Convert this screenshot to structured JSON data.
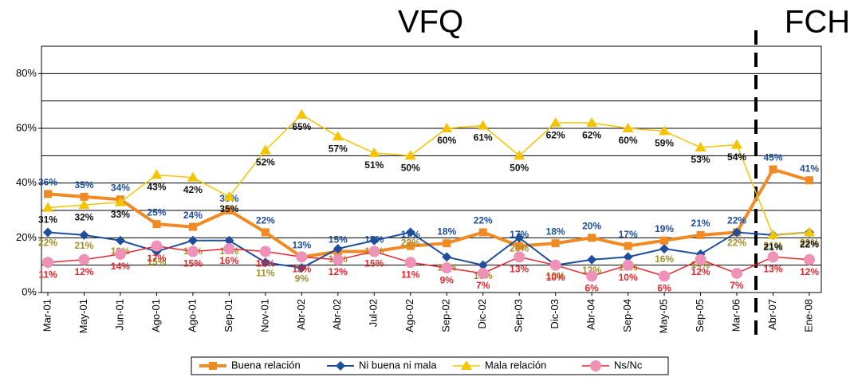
{
  "chart_data": {
    "type": "line",
    "annotations": [
      "VFQ",
      "FCH"
    ],
    "categories": [
      "Mar-01",
      "May-01",
      "Jun-01",
      "Ago-01",
      "Ago-01",
      "Sep-01",
      "Nov-01",
      "Abr-02",
      "Abr-02",
      "Jul-02",
      "Ago-02",
      "Sep-02",
      "Dic-02",
      "Sep-03",
      "Dic-03",
      "Abr-04",
      "Sep-04",
      "May-05",
      "Sep-05",
      "Mar-06",
      "Abr-07",
      "Ene-08"
    ],
    "ylim": [
      0,
      90
    ],
    "yticks": [
      {
        "value": 0,
        "label": "0%"
      },
      {
        "value": 20,
        "label": "20%"
      },
      {
        "value": 40,
        "label": "40%"
      },
      {
        "value": 60,
        "label": "60%"
      },
      {
        "value": 80,
        "label": "80%"
      }
    ],
    "grid_lines": [
      10,
      20,
      30,
      40,
      50,
      60,
      70,
      80,
      90
    ],
    "legend": "bottom",
    "series": [
      {
        "name": "Buena relación",
        "color": "#f08a24",
        "marker": "square",
        "width": 4,
        "label_color": "#1f4e9c",
        "label_offset": -14,
        "values": [
          36,
          35,
          34,
          25,
          24,
          30,
          22,
          13,
          15,
          15,
          17,
          18,
          22,
          17,
          18,
          20,
          17,
          19,
          21,
          22,
          45,
          41
        ],
        "value_labels": [
          "36%",
          "35%",
          "34%",
          "25%",
          "24%",
          "30%",
          "22%",
          "13%",
          "15%",
          "15%",
          "17%",
          "18%",
          "22%",
          "17%",
          "18%",
          "20%",
          "17%",
          "19%",
          "21%",
          "22%",
          "45%",
          "41%"
        ]
      },
      {
        "name": "Ni buena ni mala",
        "color": "#1f4e9c",
        "marker": "diamond",
        "width": 2,
        "label_color": "#a08f2a",
        "label_offset": 14,
        "values": [
          22,
          21,
          19,
          15,
          19,
          19,
          11,
          9,
          16,
          19,
          22,
          13,
          10,
          20,
          10,
          12,
          13,
          16,
          14,
          22,
          21,
          22
        ],
        "value_labels": [
          "22%",
          "21%",
          "19%",
          "15%",
          "19%",
          "19%",
          "11%",
          "9%",
          "16%",
          "19%",
          "22%",
          "13%",
          "10%",
          "20%",
          "10%",
          "12%",
          "13%",
          "16%",
          "14%",
          "22%",
          "21%",
          "22%"
        ]
      },
      {
        "name": "Mala relación",
        "color": "#f5c400",
        "marker": "triangle",
        "width": 1.5,
        "label_color": "#111111",
        "label_offset": 16,
        "values": [
          31,
          32,
          33,
          43,
          42,
          35,
          52,
          65,
          57,
          51,
          50,
          60,
          61,
          50,
          62,
          62,
          60,
          59,
          53,
          54,
          21,
          22
        ],
        "value_labels": [
          "31%",
          "32%",
          "33%",
          "43%",
          "42%",
          "35%",
          "52%",
          "65%",
          "57%",
          "51%",
          "50%",
          "60%",
          "61%",
          "50%",
          "62%",
          "62%",
          "60%",
          "59%",
          "53%",
          "54%",
          "21%",
          "22%"
        ]
      },
      {
        "name": "Ns/Nc",
        "color": "#e8262e",
        "marker": "circle",
        "marker_color": "#ee92b8",
        "width": 1.5,
        "label_color": "#e8262e",
        "label_offset": 16,
        "values": [
          11,
          12,
          14,
          17,
          15,
          16,
          15,
          13,
          12,
          15,
          11,
          9,
          7,
          13,
          10,
          6,
          10,
          6,
          12,
          7,
          13,
          12
        ],
        "value_labels": [
          "11%",
          "12%",
          "14%",
          "17%",
          "15%",
          "16%",
          "15%",
          "13%",
          "12%",
          "15%",
          "11%",
          "9%",
          "7%",
          "13%",
          "10%",
          "6%",
          "10%",
          "6%",
          "12%",
          "7%",
          "13%",
          "12%"
        ]
      }
    ]
  }
}
